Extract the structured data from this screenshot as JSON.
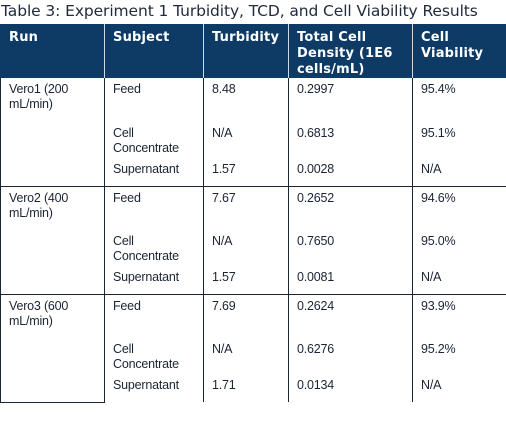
{
  "caption": "Table 3: Experiment 1 Turbidity, TCD, and Cell Viability Results",
  "headers": [
    "Run",
    "Subject",
    "Turbidity",
    "Total Cell Density (1E6 cells/mL)",
    "Cell Viability"
  ],
  "groups": [
    {
      "run": "Vero1 (200 mL/min)",
      "rows": [
        {
          "subject": "Feed",
          "turbidity": "8.48",
          "density": "0.2997",
          "viability": "95.4%"
        },
        {
          "subject": "Cell Concentrate",
          "turbidity": "N/A",
          "density": "0.6813",
          "viability": "95.1%"
        },
        {
          "subject": "Supernatant",
          "turbidity": "1.57",
          "density": "0.0028",
          "viability": "N/A"
        }
      ]
    },
    {
      "run": "Vero2 (400 mL/min)",
      "rows": [
        {
          "subject": "Feed",
          "turbidity": "7.67",
          "density": "0.2652",
          "viability": "94.6%"
        },
        {
          "subject": "Cell Concentrate",
          "turbidity": "N/A",
          "density": "0.7650",
          "viability": "95.0%"
        },
        {
          "subject": "Supernatant",
          "turbidity": "1.57",
          "density": "0.0081",
          "viability": "N/A"
        }
      ]
    },
    {
      "run": "Vero3 (600 mL/min)",
      "rows": [
        {
          "subject": "Feed",
          "turbidity": "7.69",
          "density": "0.2624",
          "viability": "93.9%"
        },
        {
          "subject": "Cell Concentrate",
          "turbidity": "N/A",
          "density": "0.6276",
          "viability": "95.2%"
        },
        {
          "subject": "Supernatant",
          "turbidity": "1.71",
          "density": "0.0134",
          "viability": "N/A"
        }
      ]
    }
  ],
  "colors": {
    "header_bg": "#0e3b66",
    "header_text": "#ffffff",
    "body_text": "#1b2433"
  }
}
